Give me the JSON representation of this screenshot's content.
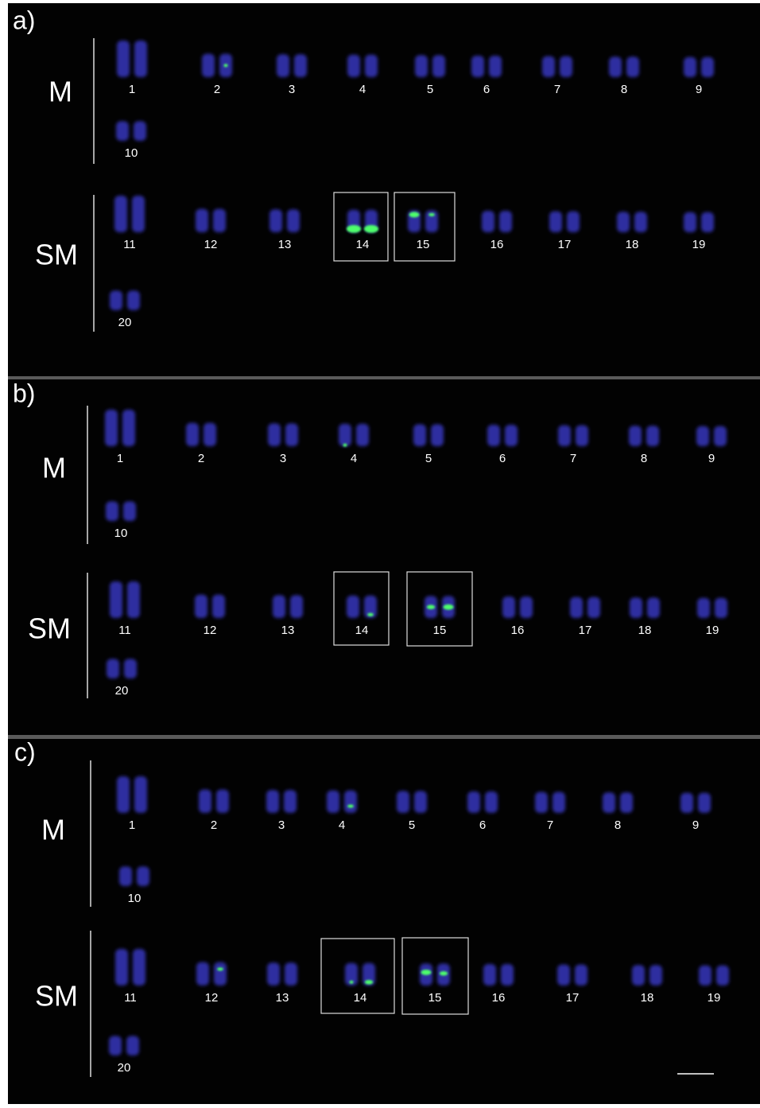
{
  "panels": [
    {
      "label": "a)",
      "groups": [
        {
          "label": "M",
          "chromosomes": [
            1,
            2,
            3,
            4,
            5,
            6,
            7,
            8,
            9,
            10
          ]
        },
        {
          "label": "SM",
          "chromosomes": [
            11,
            12,
            13,
            14,
            15,
            16,
            17,
            18,
            19,
            20
          ]
        }
      ]
    },
    {
      "label": "b)",
      "groups": [
        {
          "label": "M",
          "chromosomes": [
            1,
            2,
            3,
            4,
            5,
            6,
            7,
            8,
            9,
            10
          ]
        },
        {
          "label": "SM",
          "chromosomes": [
            11,
            12,
            13,
            14,
            15,
            16,
            17,
            18,
            19,
            20
          ]
        }
      ]
    },
    {
      "label": "c)",
      "groups": [
        {
          "label": "M",
          "chromosomes": [
            1,
            2,
            3,
            4,
            5,
            6,
            7,
            8,
            9,
            10
          ]
        },
        {
          "label": "SM",
          "chromosomes": [
            11,
            12,
            13,
            14,
            15,
            16,
            17,
            18,
            19,
            20
          ]
        }
      ]
    }
  ]
}
